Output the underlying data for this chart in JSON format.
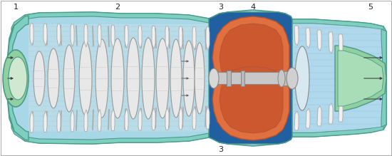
{
  "fig_width": 5.5,
  "fig_height": 2.19,
  "dpi": 100,
  "light_blue": "#a8d8e8",
  "mid_blue": "#7fc8e0",
  "dark_blue": "#2060a0",
  "teal_green": "#7ecfc0",
  "teal_edge": "#4a9a8a",
  "combustion_orange": "#e07040",
  "combustion_edge": "#b05030",
  "shaft_gray": "#c8c8c8",
  "shaft_edge": "#888888",
  "rotor_white": "#e8e8e8",
  "rotor_edge": "#999999",
  "blade_white": "#f0f0f0",
  "blade_edge": "#aaaaaa",
  "exhaust_cone_green": "#90d0a0",
  "inlet_cone_green": "#90d0a0",
  "label_color": "#222222",
  "label_fontsize": 8,
  "arrow_color": "#333333",
  "border_color": "#888888"
}
